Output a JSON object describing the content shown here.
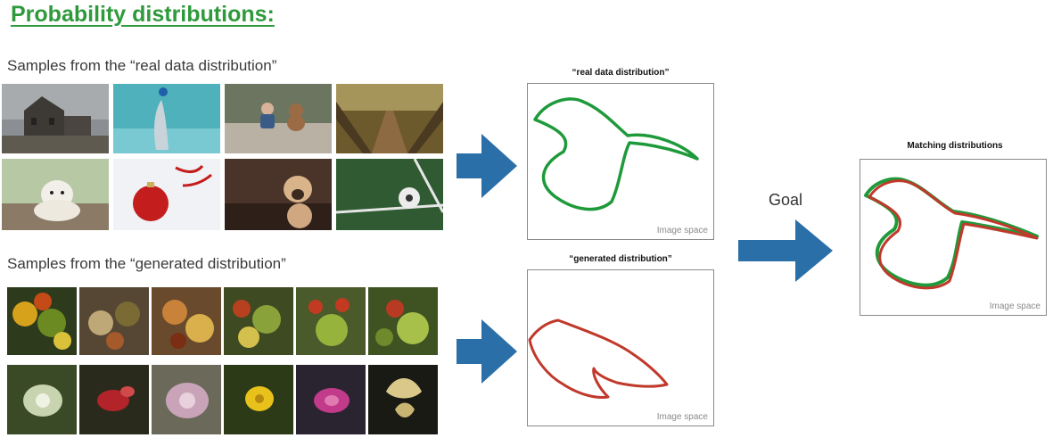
{
  "slide": {
    "title": "Probability distributions:",
    "real_caption": "Samples from the “real data distribution”",
    "generated_caption": "Samples from the “generated distribution”",
    "goal_label": "Goal"
  },
  "real_box": {
    "title": "“real data distribution”",
    "space_label": "Image space",
    "curve_color": "#1f9a3a"
  },
  "generated_box": {
    "title": "“generated distribution”",
    "space_label": "Image space",
    "curve_color": "#c0392b"
  },
  "matching_box": {
    "title": "Matching distributions",
    "space_label": "Image space"
  },
  "colors": {
    "title_green": "#2f9a3c",
    "arrow_blue": "#2b6fa8"
  },
  "real_samples": [
    {
      "name": "haunted-house-photo"
    },
    {
      "name": "dolphin-photo"
    },
    {
      "name": "kid-and-teddy-bear-photo"
    },
    {
      "name": "wooden-bridge-photo"
    },
    {
      "name": "puppy-photo"
    },
    {
      "name": "christmas-ornament-photo"
    },
    {
      "name": "pug-photo"
    },
    {
      "name": "soccer-ball-photo"
    }
  ],
  "generated_samples": [
    {
      "name": "generated-food-1"
    },
    {
      "name": "generated-food-2"
    },
    {
      "name": "generated-food-3"
    },
    {
      "name": "generated-food-4"
    },
    {
      "name": "generated-food-5"
    },
    {
      "name": "generated-food-6"
    },
    {
      "name": "generated-flower-1"
    },
    {
      "name": "generated-flower-2"
    },
    {
      "name": "generated-flower-3"
    },
    {
      "name": "generated-flower-4"
    },
    {
      "name": "generated-flower-5"
    },
    {
      "name": "generated-flower-6"
    }
  ]
}
